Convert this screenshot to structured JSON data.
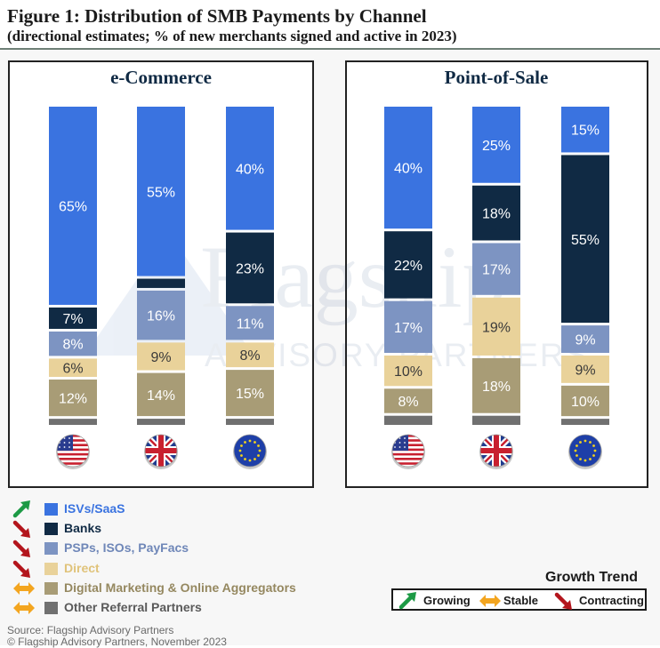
{
  "title": "Figure 1: Distribution of SMB Payments by Channel",
  "subtitle": "(directional estimates; % of new merchants signed and active in 2023)",
  "watermark": {
    "line1": "Flagship",
    "line2": "ADVISORY PARTNERS"
  },
  "colors": {
    "isvs": "#3a73e0",
    "banks": "#102a44",
    "psps": "#7d94c2",
    "direct": "#e9d29a",
    "digital": "#a89c76",
    "other": "#707070",
    "growing": "#1c9a45",
    "stable": "#f3a51f",
    "contracting": "#b3151c"
  },
  "chart_data": [
    {
      "type": "bar",
      "stacked": true,
      "title": "e-Commerce",
      "categories": [
        "US",
        "UK",
        "EU"
      ],
      "series": [
        {
          "name": "ISVs/SaaS",
          "key": "isvs",
          "values": [
            65,
            55,
            40
          ]
        },
        {
          "name": "Banks",
          "key": "banks",
          "values": [
            7,
            3,
            23
          ]
        },
        {
          "name": "PSPs, ISOs, PayFacs",
          "key": "psps",
          "values": [
            8,
            16,
            11
          ]
        },
        {
          "name": "Direct",
          "key": "direct",
          "values": [
            6,
            9,
            8
          ]
        },
        {
          "name": "Digital Marketing & Online Aggregators",
          "key": "digital",
          "values": [
            12,
            14,
            15
          ]
        },
        {
          "name": "Other Referral Partners",
          "key": "other",
          "values": [
            2,
            2,
            2
          ]
        }
      ],
      "data_labels": [
        [
          "65%",
          "7%",
          "8%",
          "6%",
          "12%",
          ""
        ],
        [
          "55%",
          "",
          "16%",
          "9%",
          "14%",
          ""
        ],
        [
          "40%",
          "23%",
          "11%",
          "8%",
          "15%",
          ""
        ]
      ]
    },
    {
      "type": "bar",
      "stacked": true,
      "title": "Point-of-Sale",
      "categories": [
        "US",
        "UK",
        "EU"
      ],
      "series": [
        {
          "name": "ISVs/SaaS",
          "key": "isvs",
          "values": [
            40,
            25,
            15
          ]
        },
        {
          "name": "Banks",
          "key": "banks",
          "values": [
            22,
            18,
            55
          ]
        },
        {
          "name": "PSPs, ISOs, PayFacs",
          "key": "psps",
          "values": [
            17,
            17,
            9
          ]
        },
        {
          "name": "Direct",
          "key": "direct",
          "values": [
            10,
            19,
            9
          ]
        },
        {
          "name": "Digital Marketing & Online Aggregators",
          "key": "digital",
          "values": [
            8,
            18,
            10
          ]
        },
        {
          "name": "Other Referral Partners",
          "key": "other",
          "values": [
            3,
            3,
            2
          ]
        }
      ],
      "data_labels": [
        [
          "40%",
          "22%",
          "17%",
          "10%",
          "8%",
          ""
        ],
        [
          "25%",
          "18%",
          "17%",
          "19%",
          "18%",
          ""
        ],
        [
          "15%",
          "55%",
          "9%",
          "9%",
          "10%",
          ""
        ]
      ]
    }
  ],
  "legend": [
    {
      "label": "ISVs/SaaS",
      "key": "isvs",
      "trend": "growing"
    },
    {
      "label": "Banks",
      "key": "banks",
      "trend": "contracting"
    },
    {
      "label": "PSPs, ISOs, PayFacs",
      "key": "psps",
      "trend": "contracting"
    },
    {
      "label": "Direct",
      "key": "direct",
      "trend": "contracting"
    },
    {
      "label": "Digital Marketing & Online Aggregators",
      "key": "digital",
      "trend": "stable"
    },
    {
      "label": "Other Referral Partners",
      "key": "other",
      "trend": "stable"
    }
  ],
  "trend_legend": {
    "title": "Growth Trend",
    "growing": "Growing",
    "stable": "Stable",
    "contracting": "Contracting"
  },
  "flags": [
    "us-flag-icon",
    "uk-flag-icon",
    "eu-flag-icon"
  ],
  "source": {
    "line1": "Source: Flagship Advisory Partners",
    "line2": "© Flagship Advisory Partners, November 2023"
  }
}
